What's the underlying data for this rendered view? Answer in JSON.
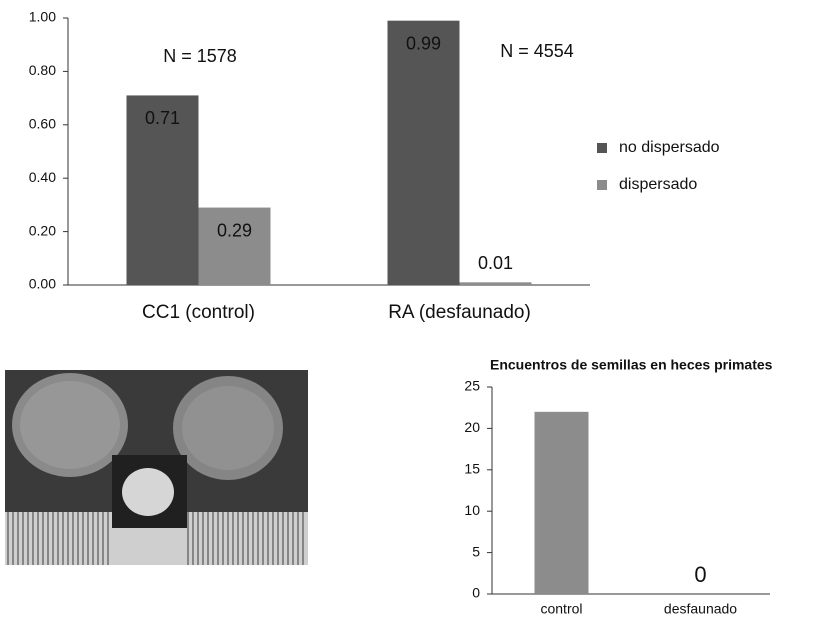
{
  "chart_data": [
    {
      "type": "bar",
      "categories": [
        "CC1 (control)",
        "RA (desfaunado)"
      ],
      "series": [
        {
          "name": "no dispersado",
          "color": "#555555",
          "values": [
            0.71,
            0.99
          ]
        },
        {
          "name": "dispersado",
          "color": "#8c8c8c",
          "values": [
            0.29,
            0.01
          ]
        }
      ],
      "ylim": [
        0,
        1
      ],
      "yticks": [
        {
          "value": 0,
          "label": "0.00"
        },
        {
          "value": 0.2,
          "label": "0.20"
        },
        {
          "value": 0.4,
          "label": "0.40"
        },
        {
          "value": 0.6,
          "label": "0.60"
        },
        {
          "value": 0.8,
          "label": "0.80"
        },
        {
          "value": 1,
          "label": "1.00"
        }
      ],
      "annotations": [
        "N = 1578",
        "N = 4554"
      ],
      "legend": "right"
    },
    {
      "type": "bar",
      "title": "Encuentros de semillas en heces primates",
      "categories": [
        "control",
        "desfaunado"
      ],
      "values": [
        22,
        0
      ],
      "value_labels": [
        null,
        "0"
      ],
      "color": "#8c8c8c",
      "ylim": [
        0,
        25
      ],
      "yticks": [
        0,
        5,
        10,
        15,
        20,
        25
      ]
    }
  ]
}
